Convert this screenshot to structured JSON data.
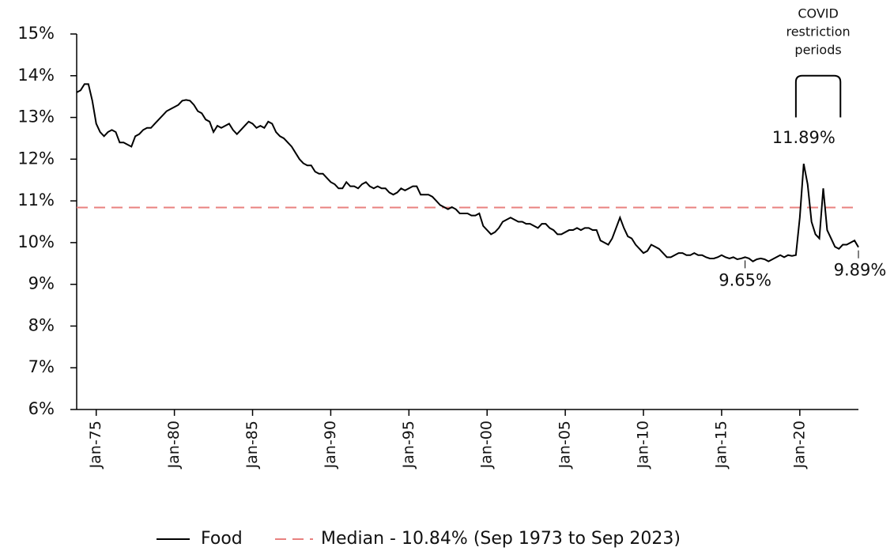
{
  "chart_data": {
    "type": "line",
    "x": [
      1973.75,
      1974,
      1974.25,
      1974.5,
      1974.75,
      1975,
      1975.25,
      1975.5,
      1975.75,
      1976,
      1976.25,
      1976.5,
      1976.75,
      1977,
      1977.25,
      1977.5,
      1977.75,
      1978,
      1978.25,
      1978.5,
      1978.75,
      1979,
      1979.25,
      1979.5,
      1979.75,
      1980,
      1980.25,
      1980.5,
      1980.75,
      1981,
      1981.25,
      1981.5,
      1981.75,
      1982,
      1982.25,
      1982.5,
      1982.75,
      1983,
      1983.25,
      1983.5,
      1983.75,
      1984,
      1984.25,
      1984.5,
      1984.75,
      1985,
      1985.25,
      1985.5,
      1985.75,
      1986,
      1986.25,
      1986.5,
      1986.75,
      1987,
      1987.25,
      1987.5,
      1987.75,
      1988,
      1988.25,
      1988.5,
      1988.75,
      1989,
      1989.25,
      1989.5,
      1989.75,
      1990,
      1990.25,
      1990.5,
      1990.75,
      1991,
      1991.25,
      1991.5,
      1991.75,
      1992,
      1992.25,
      1992.5,
      1992.75,
      1993,
      1993.25,
      1993.5,
      1993.75,
      1994,
      1994.25,
      1994.5,
      1994.75,
      1995,
      1995.25,
      1995.5,
      1995.75,
      1996,
      1996.25,
      1996.5,
      1996.75,
      1997,
      1997.25,
      1997.5,
      1997.75,
      1998,
      1998.25,
      1998.5,
      1998.75,
      1999,
      1999.25,
      1999.5,
      1999.75,
      2000,
      2000.25,
      2000.5,
      2000.75,
      2001,
      2001.25,
      2001.5,
      2001.75,
      2002,
      2002.25,
      2002.5,
      2002.75,
      2003,
      2003.25,
      2003.5,
      2003.75,
      2004,
      2004.25,
      2004.5,
      2004.75,
      2005,
      2005.25,
      2005.5,
      2005.75,
      2006,
      2006.25,
      2006.5,
      2006.75,
      2007,
      2007.25,
      2007.5,
      2007.75,
      2008,
      2008.25,
      2008.5,
      2008.75,
      2009,
      2009.25,
      2009.5,
      2009.75,
      2010,
      2010.25,
      2010.5,
      2010.75,
      2011,
      2011.25,
      2011.5,
      2011.75,
      2012,
      2012.25,
      2012.5,
      2012.75,
      2013,
      2013.25,
      2013.5,
      2013.75,
      2014,
      2014.25,
      2014.5,
      2014.75,
      2015,
      2015.25,
      2015.5,
      2015.75,
      2016,
      2016.25,
      2016.5,
      2016.75,
      2017,
      2017.25,
      2017.5,
      2017.75,
      2018,
      2018.25,
      2018.5,
      2018.75,
      2019,
      2019.25,
      2019.5,
      2019.75,
      2020,
      2020.25,
      2020.5,
      2020.75,
      2021,
      2021.25,
      2021.5,
      2021.75,
      2022,
      2022.25,
      2022.5,
      2022.75,
      2023,
      2023.25,
      2023.5,
      2023.75
    ],
    "series": [
      {
        "name": "Food",
        "color": "#000000",
        "values": [
          13.6,
          13.65,
          13.8,
          13.8,
          13.4,
          12.85,
          12.65,
          12.55,
          12.65,
          12.7,
          12.65,
          12.4,
          12.4,
          12.35,
          12.3,
          12.55,
          12.6,
          12.7,
          12.75,
          12.75,
          12.85,
          12.95,
          13.05,
          13.15,
          13.2,
          13.25,
          13.3,
          13.4,
          13.42,
          13.4,
          13.3,
          13.15,
          13.1,
          12.95,
          12.9,
          12.65,
          12.8,
          12.75,
          12.8,
          12.85,
          12.7,
          12.6,
          12.7,
          12.8,
          12.9,
          12.85,
          12.75,
          12.8,
          12.75,
          12.9,
          12.85,
          12.65,
          12.55,
          12.5,
          12.4,
          12.3,
          12.15,
          12.0,
          11.9,
          11.85,
          11.85,
          11.7,
          11.65,
          11.65,
          11.55,
          11.45,
          11.4,
          11.3,
          11.3,
          11.45,
          11.35,
          11.35,
          11.3,
          11.4,
          11.45,
          11.35,
          11.3,
          11.35,
          11.3,
          11.3,
          11.2,
          11.15,
          11.2,
          11.3,
          11.25,
          11.3,
          11.35,
          11.35,
          11.15,
          11.15,
          11.15,
          11.1,
          11.0,
          10.9,
          10.85,
          10.8,
          10.85,
          10.8,
          10.7,
          10.7,
          10.7,
          10.65,
          10.65,
          10.7,
          10.4,
          10.3,
          10.2,
          10.25,
          10.35,
          10.5,
          10.55,
          10.6,
          10.55,
          10.5,
          10.5,
          10.45,
          10.45,
          10.4,
          10.35,
          10.45,
          10.45,
          10.35,
          10.3,
          10.2,
          10.2,
          10.25,
          10.3,
          10.3,
          10.35,
          10.3,
          10.35,
          10.35,
          10.3,
          10.3,
          10.05,
          10.0,
          9.95,
          10.1,
          10.35,
          10.6,
          10.35,
          10.15,
          10.1,
          9.95,
          9.85,
          9.75,
          9.8,
          9.95,
          9.9,
          9.85,
          9.75,
          9.65,
          9.65,
          9.7,
          9.75,
          9.75,
          9.7,
          9.7,
          9.75,
          9.7,
          9.7,
          9.65,
          9.62,
          9.62,
          9.65,
          9.7,
          9.65,
          9.62,
          9.65,
          9.6,
          9.62,
          9.65,
          9.62,
          9.55,
          9.6,
          9.62,
          9.6,
          9.55,
          9.6,
          9.65,
          9.7,
          9.65,
          9.7,
          9.68,
          9.7,
          10.6,
          11.89,
          11.4,
          10.5,
          10.2,
          10.1,
          11.3,
          10.3,
          10.1,
          9.9,
          9.85,
          9.95,
          9.95,
          10.0,
          10.05,
          9.89
        ]
      }
    ],
    "reference_line": {
      "name": "Median - 10.84% (Sep 1973 to Sep 2023)",
      "value": 10.84,
      "color": "#e8817f"
    },
    "xlim": [
      1973.75,
      2023.75
    ],
    "ylim": [
      6,
      15
    ],
    "xticks": [
      {
        "value": 1975,
        "label": "Jan-75"
      },
      {
        "value": 1980,
        "label": "Jan-80"
      },
      {
        "value": 1985,
        "label": "Jan-85"
      },
      {
        "value": 1990,
        "label": "Jan-90"
      },
      {
        "value": 1995,
        "label": "Jan-95"
      },
      {
        "value": 2000,
        "label": "Jan-00"
      },
      {
        "value": 2005,
        "label": "Jan-05"
      },
      {
        "value": 2010,
        "label": "Jan-10"
      },
      {
        "value": 2015,
        "label": "Jan-15"
      },
      {
        "value": 2020,
        "label": "Jan-20"
      }
    ],
    "yticks": [
      {
        "value": 6,
        "label": "6%"
      },
      {
        "value": 7,
        "label": "7%"
      },
      {
        "value": 8,
        "label": "8%"
      },
      {
        "value": 9,
        "label": "9%"
      },
      {
        "value": 10,
        "label": "10%"
      },
      {
        "value": 11,
        "label": "11%"
      },
      {
        "value": 12,
        "label": "12%"
      },
      {
        "value": 13,
        "label": "13%"
      },
      {
        "value": 14,
        "label": "14%"
      },
      {
        "value": 15,
        "label": "15%"
      }
    ],
    "point_labels": [
      {
        "x": 2020.25,
        "value": 11.89,
        "label": "11.89%"
      },
      {
        "x": 2016.5,
        "value": 9.65,
        "label": "9.65%"
      },
      {
        "x": 2023.75,
        "value": 9.89,
        "label": "9.89%"
      }
    ],
    "covid_bracket": {
      "lines": [
        "COVID",
        "restriction",
        "periods"
      ],
      "x": [
        2019.75,
        2022.6
      ],
      "y": [
        13,
        14
      ]
    }
  }
}
